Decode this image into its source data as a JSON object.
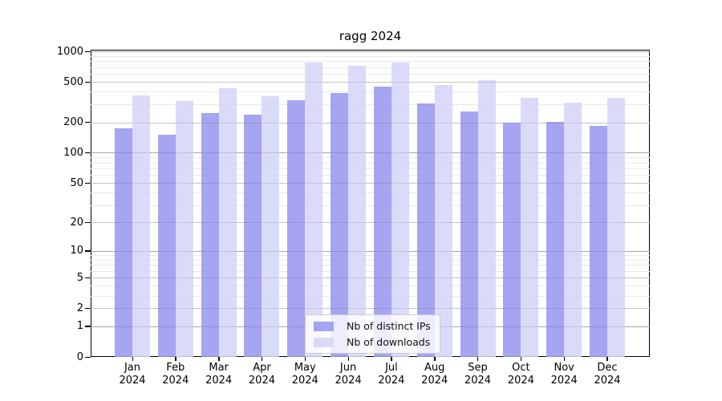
{
  "title": "ragg 2024",
  "legend": {
    "items": [
      {
        "label": "Nb of distinct IPs"
      },
      {
        "label": "Nb of downloads"
      }
    ]
  },
  "y_axis": {
    "tick_labels": [
      "1000",
      "500",
      "200",
      "100",
      "50",
      "20",
      "10",
      "5",
      "2",
      "1",
      "0"
    ]
  },
  "x_axis": {
    "months": [
      "Jan",
      "Feb",
      "Mar",
      "Apr",
      "May",
      "Jun",
      "Jul",
      "Aug",
      "Sep",
      "Oct",
      "Nov",
      "Dec"
    ],
    "year": "2024"
  },
  "chart_data": {
    "type": "bar",
    "title": "ragg 2024",
    "categories": [
      "Jan 2024",
      "Feb 2024",
      "Mar 2024",
      "Apr 2024",
      "May 2024",
      "Jun 2024",
      "Jul 2024",
      "Aug 2024",
      "Sep 2024",
      "Oct 2024",
      "Nov 2024",
      "Dec 2024"
    ],
    "series": [
      {
        "name": "Nb of distinct IPs",
        "color": "#9898f0",
        "values": [
          174,
          151,
          245,
          238,
          328,
          388,
          447,
          306,
          255,
          197,
          203,
          184
        ]
      },
      {
        "name": "Nb of downloads",
        "color": "#d5d5f8",
        "values": [
          365,
          325,
          430,
          364,
          772,
          722,
          776,
          466,
          520,
          349,
          312,
          351
        ]
      }
    ],
    "yscale": "log(1+x)",
    "ylim": [
      0,
      1040
    ],
    "y_major_ticks": [
      0,
      1,
      2,
      5,
      10,
      20,
      50,
      100,
      200,
      500,
      1000
    ],
    "y_minor_ticks": [
      3,
      4,
      6,
      7,
      8,
      9,
      30,
      40,
      60,
      70,
      80,
      90,
      300,
      400,
      600,
      700,
      800,
      900
    ],
    "grid": true,
    "legend_position": "lower center",
    "bar_alpha": 0.87
  }
}
